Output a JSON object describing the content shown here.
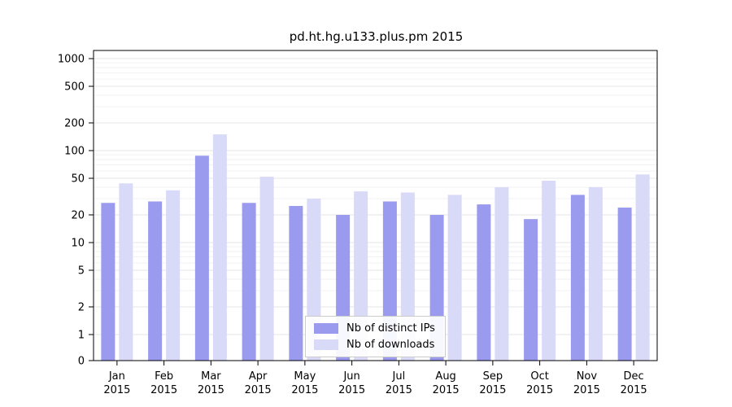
{
  "chart_data": {
    "type": "bar",
    "title": "pd.ht.hg.u133.plus.pm 2015",
    "year": "2015",
    "categories": [
      "Jan",
      "Feb",
      "Mar",
      "Apr",
      "May",
      "Jun",
      "Jul",
      "Aug",
      "Sep",
      "Oct",
      "Nov",
      "Dec"
    ],
    "series": [
      {
        "name": "Nb of distinct IPs",
        "color": "#9a9aee",
        "values": [
          27,
          28,
          88,
          27,
          25,
          20,
          28,
          20,
          26,
          18,
          33,
          24
        ]
      },
      {
        "name": "Nb of downloads",
        "color": "#d9d9f8",
        "values": [
          44,
          37,
          150,
          52,
          30,
          36,
          35,
          33,
          40,
          47,
          40,
          55
        ]
      }
    ],
    "yticks": [
      0,
      1,
      2,
      5,
      10,
      20,
      50,
      100,
      200,
      500,
      1000
    ],
    "ylim": [
      0,
      1000
    ],
    "yscale": "symlog",
    "grid": true,
    "legend_position": "lower center"
  }
}
